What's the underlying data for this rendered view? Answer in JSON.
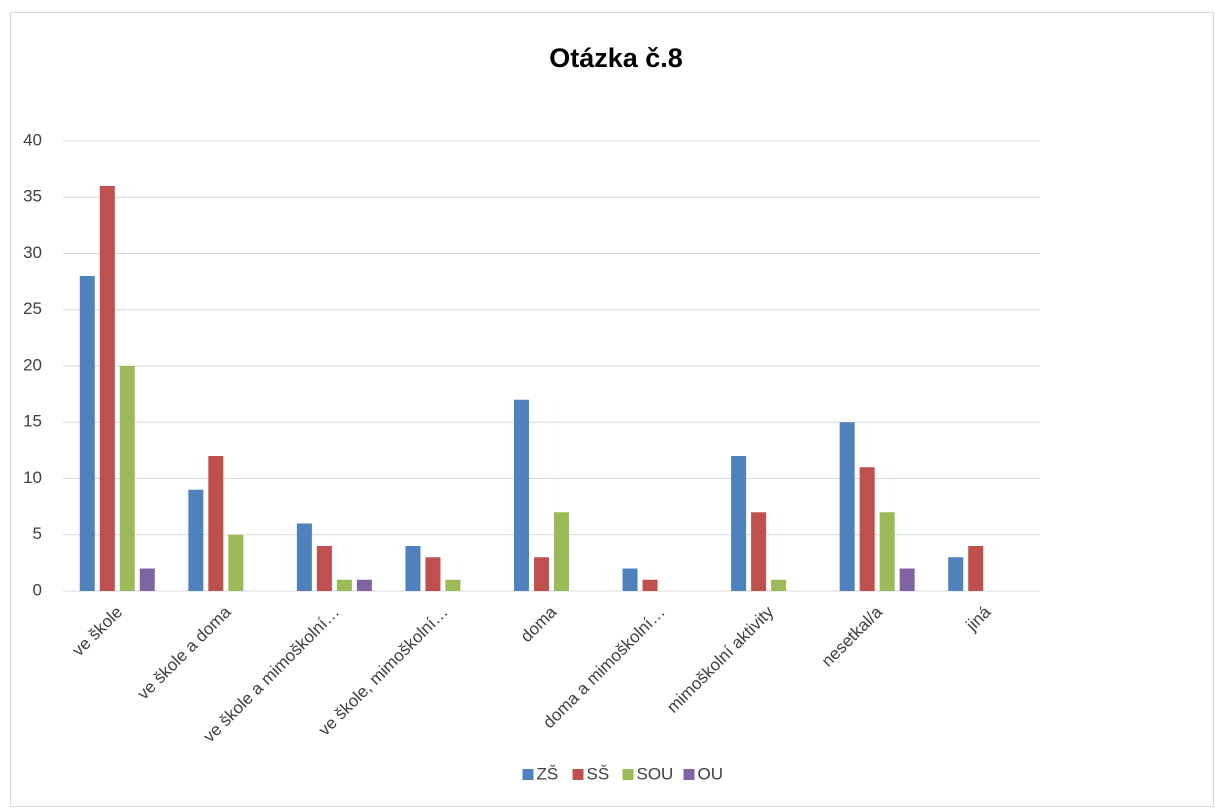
{
  "chart_data": {
    "type": "bar",
    "title": "Otázka č.8",
    "categories": [
      "ve škole",
      "ve škole a doma",
      "ve škole a mimoškolní…",
      "ve škole, mimoškolní…",
      "doma",
      "doma a mimoškolní…",
      "mimoškolní aktivity",
      "nesetkal/a",
      "jiná"
    ],
    "series": [
      {
        "name": "ZŠ",
        "color": "#4f81bd",
        "values": [
          28,
          9,
          6,
          4,
          17,
          2,
          12,
          15,
          3
        ]
      },
      {
        "name": "SŠ",
        "color": "#c0504d",
        "values": [
          36,
          12,
          4,
          3,
          3,
          1,
          7,
          11,
          4
        ]
      },
      {
        "name": "SOU",
        "color": "#9bbb59",
        "values": [
          20,
          5,
          1,
          1,
          7,
          0,
          1,
          7,
          0
        ]
      },
      {
        "name": "OU",
        "color": "#8064a2",
        "values": [
          2,
          0,
          1,
          0,
          0,
          0,
          0,
          2,
          0
        ]
      }
    ],
    "ylim": [
      0,
      40
    ],
    "yticks": [
      0,
      5,
      10,
      15,
      20,
      25,
      30,
      35,
      40
    ],
    "grid": true,
    "legend": "bottom"
  }
}
